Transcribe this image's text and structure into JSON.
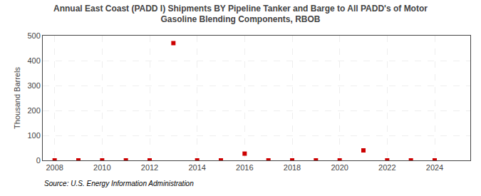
{
  "chart_data": {
    "type": "scatter",
    "title": "Annual East Coast (PADD I) Shipments BY Pipeline Tanker and Barge to All PADD's of Motor\nGasoline Blending Components, RBOB",
    "ylabel": "Thousand Barrels",
    "annotations": [
      "Source: U.S. Energy Information Administration"
    ],
    "x": [
      2008,
      2009,
      2010,
      2011,
      2012,
      2013,
      2014,
      2015,
      2016,
      2017,
      2018,
      2019,
      2020,
      2021,
      2022,
      2023,
      2024
    ],
    "values": [
      0,
      0,
      0,
      0,
      0,
      470,
      0,
      0,
      27,
      0,
      0,
      0,
      0,
      40,
      0,
      0,
      0
    ],
    "color": "#cc0000",
    "marker": "square",
    "xlim": [
      2007.5,
      2025.5
    ],
    "xticks": [
      2008,
      2010,
      2012,
      2014,
      2016,
      2018,
      2020,
      2022,
      2024
    ],
    "ylim": [
      0,
      500
    ],
    "yticks": [
      0,
      100,
      200,
      300,
      400,
      500
    ],
    "grid": true
  }
}
